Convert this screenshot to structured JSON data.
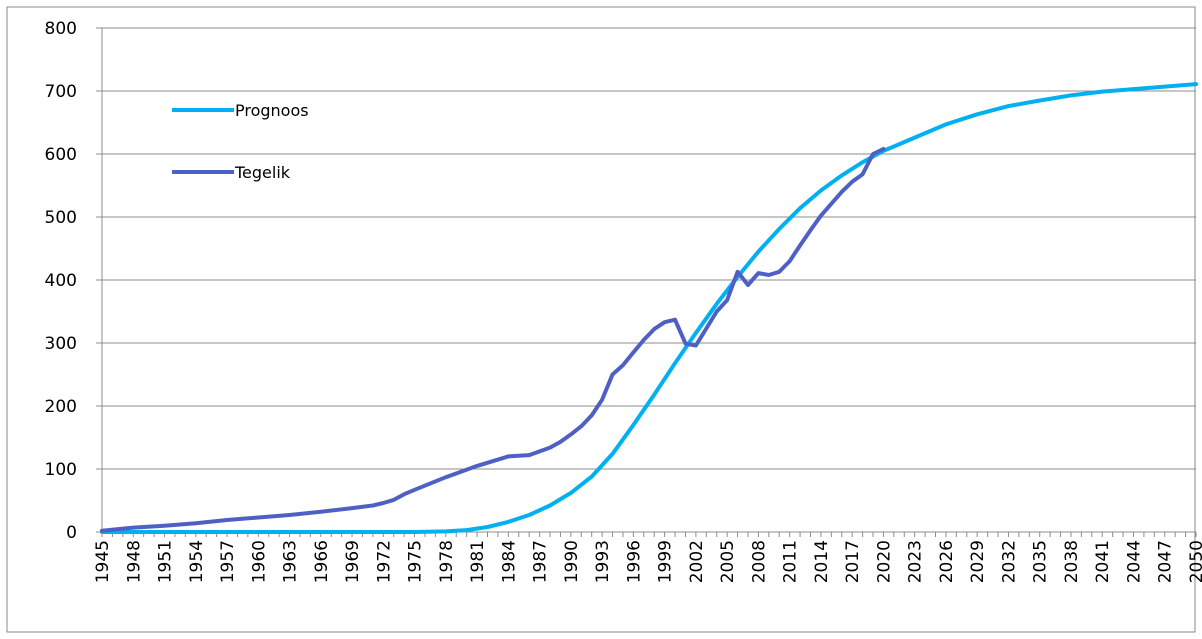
{
  "chart_data": {
    "type": "line",
    "title": "",
    "xlabel": "",
    "ylabel": "",
    "xlim": [
      1945,
      2050
    ],
    "ylim": [
      0,
      800
    ],
    "yticks": [
      0,
      100,
      200,
      300,
      400,
      500,
      600,
      700,
      800
    ],
    "xtick_step": 3,
    "grid": true,
    "legend_position": "top-left",
    "series": [
      {
        "name": "Prognoos",
        "color": "#00b0f0",
        "points": [
          [
            1945,
            0
          ],
          [
            1950,
            0
          ],
          [
            1955,
            0
          ],
          [
            1960,
            0
          ],
          [
            1965,
            0
          ],
          [
            1970,
            0
          ],
          [
            1975,
            0
          ],
          [
            1978,
            1
          ],
          [
            1980,
            3
          ],
          [
            1982,
            8
          ],
          [
            1984,
            16
          ],
          [
            1986,
            27
          ],
          [
            1988,
            42
          ],
          [
            1990,
            62
          ],
          [
            1992,
            88
          ],
          [
            1994,
            124
          ],
          [
            1996,
            170
          ],
          [
            1998,
            218
          ],
          [
            2000,
            268
          ],
          [
            2002,
            316
          ],
          [
            2004,
            362
          ],
          [
            2006,
            405
          ],
          [
            2008,
            445
          ],
          [
            2010,
            481
          ],
          [
            2012,
            514
          ],
          [
            2014,
            542
          ],
          [
            2016,
            566
          ],
          [
            2018,
            587
          ],
          [
            2020,
            605
          ],
          [
            2023,
            626
          ],
          [
            2026,
            647
          ],
          [
            2029,
            663
          ],
          [
            2032,
            676
          ],
          [
            2035,
            685
          ],
          [
            2038,
            693
          ],
          [
            2041,
            699
          ],
          [
            2044,
            703
          ],
          [
            2047,
            707
          ],
          [
            2050,
            711
          ]
        ]
      },
      {
        "name": "Tegelik",
        "color": "#4f60c4",
        "points": [
          [
            1945,
            2
          ],
          [
            1948,
            7
          ],
          [
            1951,
            10
          ],
          [
            1954,
            14
          ],
          [
            1957,
            19
          ],
          [
            1960,
            23
          ],
          [
            1963,
            27
          ],
          [
            1966,
            32
          ],
          [
            1969,
            38
          ],
          [
            1971,
            42
          ],
          [
            1972,
            46
          ],
          [
            1973,
            51
          ],
          [
            1974,
            60
          ],
          [
            1975,
            67
          ],
          [
            1978,
            87
          ],
          [
            1981,
            105
          ],
          [
            1984,
            120
          ],
          [
            1986,
            122
          ],
          [
            1987,
            128
          ],
          [
            1988,
            134
          ],
          [
            1989,
            143
          ],
          [
            1990,
            155
          ],
          [
            1991,
            168
          ],
          [
            1992,
            185
          ],
          [
            1993,
            210
          ],
          [
            1994,
            250
          ],
          [
            1995,
            265
          ],
          [
            1996,
            285
          ],
          [
            1997,
            305
          ],
          [
            1998,
            322
          ],
          [
            1999,
            333
          ],
          [
            2000,
            337
          ],
          [
            2001,
            299
          ],
          [
            2002,
            296
          ],
          [
            2003,
            323
          ],
          [
            2004,
            350
          ],
          [
            2005,
            368
          ],
          [
            2006,
            413
          ],
          [
            2007,
            392
          ],
          [
            2008,
            411
          ],
          [
            2009,
            408
          ],
          [
            2010,
            413
          ],
          [
            2011,
            430
          ],
          [
            2012,
            455
          ],
          [
            2013,
            479
          ],
          [
            2014,
            502
          ],
          [
            2015,
            521
          ],
          [
            2016,
            540
          ],
          [
            2017,
            556
          ],
          [
            2018,
            568
          ],
          [
            2019,
            600
          ],
          [
            2020,
            608
          ]
        ]
      }
    ]
  }
}
